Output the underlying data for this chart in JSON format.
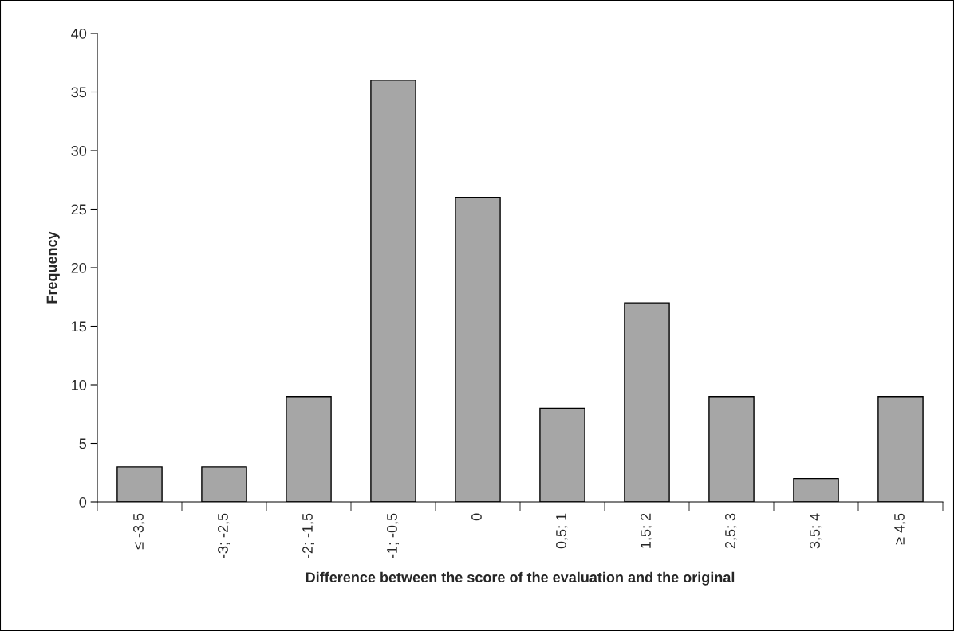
{
  "chart_data": {
    "type": "bar",
    "xlabel": "Difference between the score of the evaluation and the original",
    "ylabel": "Frequency",
    "categories": [
      "≤ -3,5",
      "-3; -2,5",
      "-2; -1,5",
      "-1; -0,5",
      "0",
      "0,5; 1",
      "1,5; 2",
      "2,5; 3",
      "3,5; 4",
      "≥ 4,5"
    ],
    "values": [
      3,
      3,
      9,
      36,
      26,
      8,
      17,
      9,
      2,
      9
    ],
    "color": "#a6a6a6",
    "ylim": [
      0,
      40
    ],
    "yticks": [
      0,
      5,
      10,
      15,
      20,
      25,
      30,
      35,
      40
    ],
    "grid": false,
    "legend": false
  }
}
